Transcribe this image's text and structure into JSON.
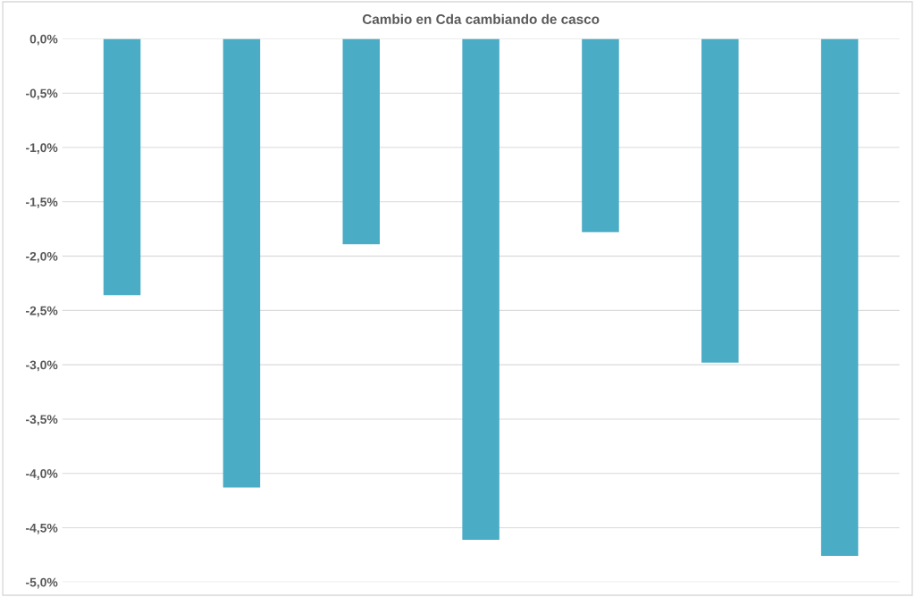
{
  "chart_data": {
    "type": "bar",
    "title": "Cambio en Cda cambiando de casco",
    "categories": [
      null,
      null,
      null,
      null,
      null,
      null,
      null
    ],
    "values": [
      -2.36,
      -4.13,
      -1.89,
      -4.61,
      -1.78,
      -2.98,
      -4.76
    ],
    "color": "#4bacc6",
    "ylim": [
      -5.0,
      0.0
    ],
    "yticks": [
      {
        "value": 0.0,
        "label": "0,0%"
      },
      {
        "value": -0.5,
        "label": "-0,5%"
      },
      {
        "value": -1.0,
        "label": "-1,0%"
      },
      {
        "value": -1.5,
        "label": "-1,5%"
      },
      {
        "value": -2.0,
        "label": "-2,0%"
      },
      {
        "value": -2.5,
        "label": "-2,5%"
      },
      {
        "value": -3.0,
        "label": "-3,0%"
      },
      {
        "value": -3.5,
        "label": "-3,5%"
      },
      {
        "value": -4.0,
        "label": "-4,0%"
      },
      {
        "value": -4.5,
        "label": "-4,5%"
      },
      {
        "value": -5.0,
        "label": "-5,0%"
      }
    ],
    "grid": "y"
  }
}
